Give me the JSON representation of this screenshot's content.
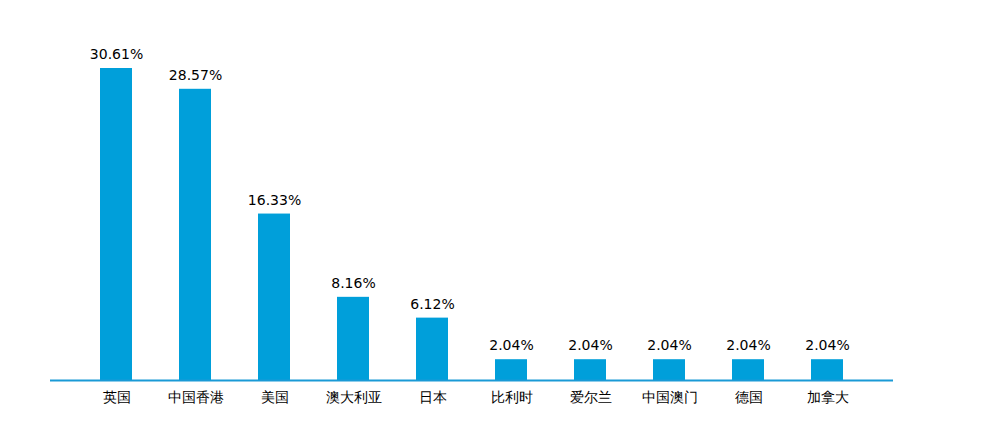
{
  "chart_data": {
    "type": "bar",
    "categories": [
      "英国",
      "中国香港",
      "美国",
      "澳大利亚",
      "日本",
      "比利时",
      "爱尔兰",
      "中国澳门",
      "德国",
      "加拿大"
    ],
    "values": [
      30.61,
      28.57,
      16.33,
      8.16,
      6.12,
      2.04,
      2.04,
      2.04,
      2.04,
      2.04
    ],
    "value_labels": [
      "30.61%",
      "28.57%",
      "16.33%",
      "8.16%",
      "6.12%",
      "2.04%",
      "2.04%",
      "2.04%",
      "2.04%",
      "2.04%"
    ],
    "color": "#009fda",
    "data_labels": true,
    "tick_labels": "x"
  }
}
